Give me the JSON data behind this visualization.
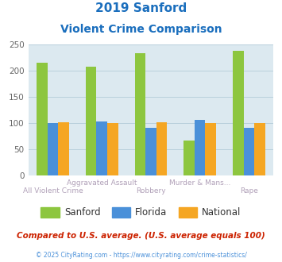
{
  "title_line1": "2019 Sanford",
  "title_line2": "Violent Crime Comparison",
  "title_color": "#1a6ebd",
  "categories": [
    "All Violent Crime",
    "Aggravated Assault",
    "Robbery",
    "Murder & Mans...",
    "Rape"
  ],
  "tick_labels_row1": [
    "",
    "Aggravated Assault",
    "",
    "Murder & Mans...",
    ""
  ],
  "tick_labels_row2": [
    "All Violent Crime",
    "",
    "Robbery",
    "",
    "Rape"
  ],
  "series": {
    "Sanford": [
      215,
      208,
      234,
      67,
      238
    ],
    "Florida": [
      100,
      103,
      91,
      106,
      91
    ],
    "National": [
      101,
      100,
      101,
      100,
      100
    ]
  },
  "colors": {
    "Sanford": "#8dc63f",
    "Florida": "#4a90d9",
    "National": "#f5a623"
  },
  "ylim": [
    0,
    250
  ],
  "yticks": [
    0,
    50,
    100,
    150,
    200,
    250
  ],
  "background_color": "#dce9f0",
  "grid_color": "#b8d0dc",
  "footnote": "Compared to U.S. average. (U.S. average equals 100)",
  "footnote_color": "#cc2200",
  "copyright": "© 2025 CityRating.com - https://www.cityrating.com/crime-statistics/",
  "copyright_color": "#4a90d9",
  "label_color": "#b0a0b8"
}
